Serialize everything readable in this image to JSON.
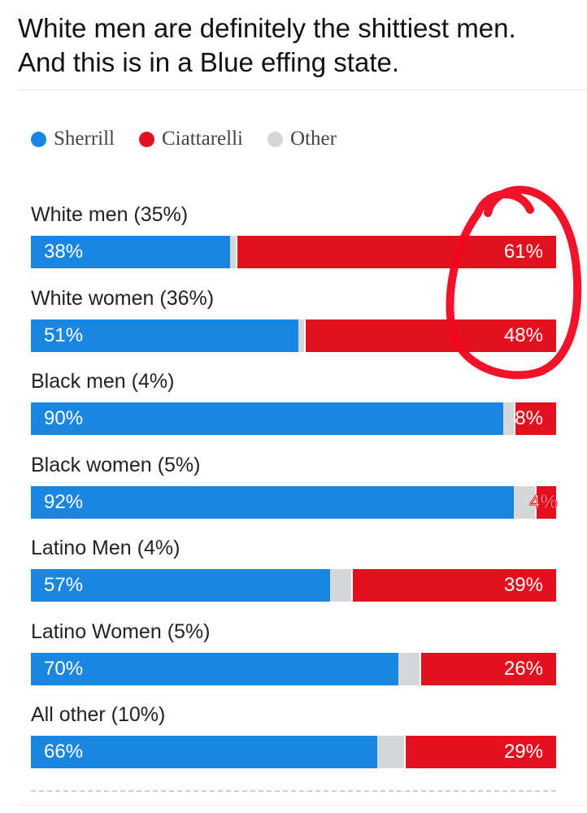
{
  "post": {
    "line1": "White men are definitely the shittiest men.",
    "line2": "And this is in a Blue effing state."
  },
  "legend": [
    {
      "label": "Sherrill",
      "color": "#1a86e0"
    },
    {
      "label": "Ciattarelli",
      "color": "#e3101e"
    },
    {
      "label": "Other",
      "color": "#d4d6d8"
    }
  ],
  "chart_data": {
    "type": "bar",
    "orientation": "horizontal-stacked-100",
    "categories": [
      "White men (35%)",
      "White women (36%)",
      "Black men (4%)",
      "Black women (5%)",
      "Latino Men (4%)",
      "Latino Women (5%)",
      "All other (10%)"
    ],
    "series": [
      {
        "name": "Sherrill",
        "color": "#1a86e0",
        "values": [
          38,
          51,
          90,
          92,
          57,
          70,
          66
        ],
        "labels": [
          "38%",
          "51%",
          "90%",
          "92%",
          "57%",
          "70%",
          "66%"
        ]
      },
      {
        "name": "Ciattarelli",
        "color": "#e3101e",
        "values": [
          61,
          48,
          8,
          4,
          39,
          26,
          29
        ],
        "labels": [
          "61%",
          "48%",
          "8%",
          "4%",
          "39%",
          "26%",
          "29%"
        ]
      },
      {
        "name": "Other",
        "color": "#d4d6d8",
        "values": [
          1,
          1,
          2,
          4,
          4,
          4,
          5
        ]
      }
    ],
    "annotation": "red hand-drawn circle around the Ciattarelli values for White men and White women",
    "legend_position": "top-left"
  }
}
